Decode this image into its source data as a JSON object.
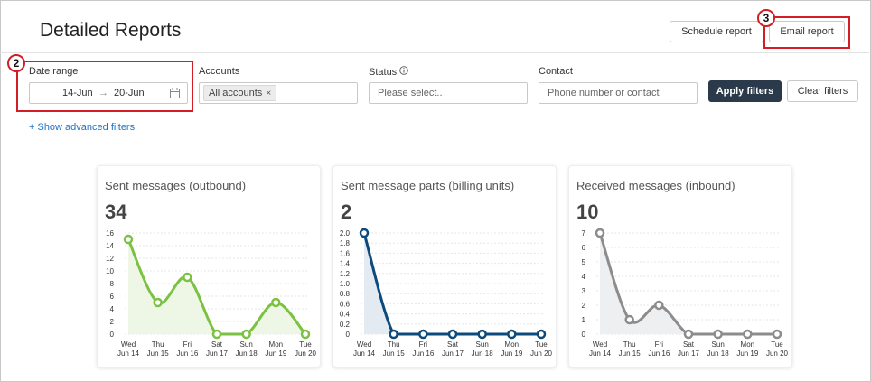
{
  "header": {
    "title": "Detailed Reports",
    "schedule_label": "Schedule report",
    "email_label": "Email report"
  },
  "annotations": {
    "two": "2",
    "three": "3"
  },
  "filters": {
    "date_range": {
      "label": "Date range",
      "from": "14-Jun",
      "arrow": "→",
      "to": "20-Jun"
    },
    "accounts": {
      "label": "Accounts",
      "chip": "All accounts",
      "chip_remove": "×"
    },
    "status": {
      "label": "Status",
      "placeholder": "Please select.."
    },
    "contact": {
      "label": "Contact",
      "placeholder": "Phone number or contact"
    },
    "apply_label": "Apply filters",
    "clear_label": "Clear filters",
    "advanced_link": "+ Show advanced filters"
  },
  "chart_data": [
    {
      "type": "line",
      "title": "Sent messages (outbound)",
      "total": "34",
      "color": "#7cc242",
      "fill": "#eef7e6",
      "categories": [
        [
          "Wed",
          "Jun 14"
        ],
        [
          "Thu",
          "Jun 15"
        ],
        [
          "Fri",
          "Jun 16"
        ],
        [
          "Sat",
          "Jun 17"
        ],
        [
          "Sun",
          "Jun 18"
        ],
        [
          "Mon",
          "Jun 19"
        ],
        [
          "Tue",
          "Jun 20"
        ]
      ],
      "values": [
        15,
        5,
        9,
        0,
        0,
        5,
        0
      ],
      "yticks": [
        "0",
        "2",
        "4",
        "6",
        "8",
        "10",
        "12",
        "14",
        "16"
      ],
      "ylim": [
        0,
        16
      ]
    },
    {
      "type": "line",
      "title": "Sent message parts (billing units)",
      "total": "2",
      "color": "#0d4a7c",
      "fill": "#e4eaf2",
      "categories": [
        [
          "Wed",
          "Jun 14"
        ],
        [
          "Thu",
          "Jun 15"
        ],
        [
          "Fri",
          "Jun 16"
        ],
        [
          "Sat",
          "Jun 17"
        ],
        [
          "Sun",
          "Jun 18"
        ],
        [
          "Mon",
          "Jun 19"
        ],
        [
          "Tue",
          "Jun 20"
        ]
      ],
      "values": [
        2,
        0,
        0,
        0,
        0,
        0,
        0
      ],
      "yticks": [
        "0",
        "0.2",
        "0.4",
        "0.6",
        "0.8",
        "1.0",
        "1.2",
        "1.4",
        "1.6",
        "1.8",
        "2.0"
      ],
      "ylim": [
        0,
        2
      ]
    },
    {
      "type": "line",
      "title": "Received messages (inbound)",
      "total": "10",
      "color": "#8c8c8c",
      "fill": "#eeeff1",
      "categories": [
        [
          "Wed",
          "Jun 14"
        ],
        [
          "Thu",
          "Jun 15"
        ],
        [
          "Fri",
          "Jun 16"
        ],
        [
          "Sat",
          "Jun 17"
        ],
        [
          "Sun",
          "Jun 18"
        ],
        [
          "Mon",
          "Jun 19"
        ],
        [
          "Tue",
          "Jun 20"
        ]
      ],
      "values": [
        7,
        1,
        2,
        0,
        0,
        0,
        0
      ],
      "yticks": [
        "0",
        "1",
        "2",
        "3",
        "4",
        "5",
        "6",
        "7"
      ],
      "ylim": [
        0,
        7
      ]
    }
  ]
}
